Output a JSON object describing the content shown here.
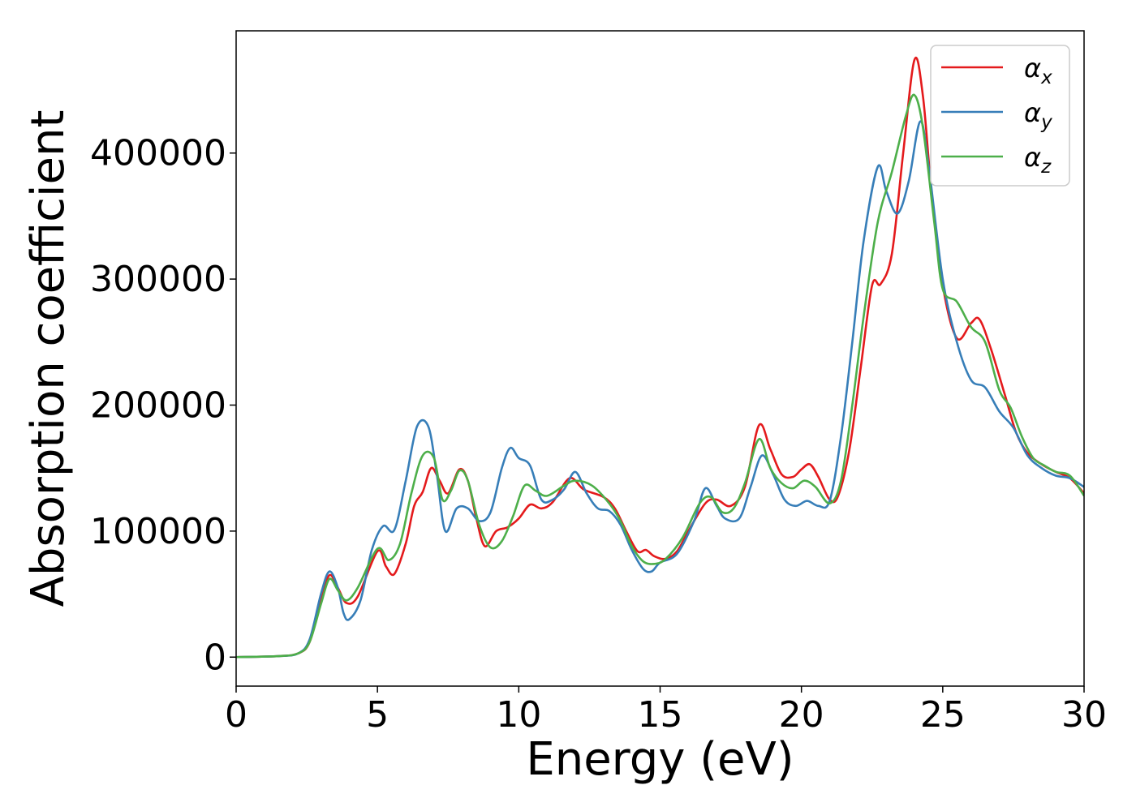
{
  "chart_data": {
    "type": "line",
    "xlabel": "Energy (eV)",
    "ylabel": "Absorption coefficient",
    "xlim": [
      0,
      30
    ],
    "ylim": [
      -23000,
      497000
    ],
    "xticks": [
      0,
      5,
      10,
      15,
      20,
      25,
      30
    ],
    "yticks": [
      0,
      100000,
      200000,
      300000,
      400000
    ],
    "grid": false,
    "legend_position": "top-right",
    "series": [
      {
        "name": "α_x",
        "legend_base": "α",
        "legend_sub": "x",
        "color": "#e41a1c",
        "points": [
          [
            0,
            0
          ],
          [
            1.5,
            800
          ],
          [
            2.2,
            3000
          ],
          [
            2.6,
            12000
          ],
          [
            3.0,
            45000
          ],
          [
            3.3,
            65000
          ],
          [
            3.6,
            55000
          ],
          [
            3.9,
            43000
          ],
          [
            4.3,
            48000
          ],
          [
            5.0,
            84000
          ],
          [
            5.3,
            72000
          ],
          [
            5.6,
            66000
          ],
          [
            6.0,
            90000
          ],
          [
            6.3,
            120000
          ],
          [
            6.6,
            131000
          ],
          [
            6.9,
            150000
          ],
          [
            7.2,
            140000
          ],
          [
            7.5,
            130000
          ],
          [
            7.9,
            149000
          ],
          [
            8.2,
            140000
          ],
          [
            8.5,
            110000
          ],
          [
            8.8,
            88000
          ],
          [
            9.2,
            100000
          ],
          [
            9.6,
            103000
          ],
          [
            10.0,
            110000
          ],
          [
            10.4,
            121000
          ],
          [
            10.8,
            118000
          ],
          [
            11.2,
            123000
          ],
          [
            11.8,
            142000
          ],
          [
            12.3,
            133000
          ],
          [
            13.0,
            127000
          ],
          [
            13.4,
            118000
          ],
          [
            13.8,
            100000
          ],
          [
            14.2,
            84000
          ],
          [
            14.5,
            85000
          ],
          [
            14.8,
            80000
          ],
          [
            15.2,
            78000
          ],
          [
            15.6,
            84000
          ],
          [
            16.0,
            100000
          ],
          [
            16.6,
            122000
          ],
          [
            17.0,
            125000
          ],
          [
            17.5,
            120000
          ],
          [
            18.0,
            135000
          ],
          [
            18.5,
            184000
          ],
          [
            18.9,
            165000
          ],
          [
            19.3,
            145000
          ],
          [
            19.7,
            143000
          ],
          [
            20.0,
            149000
          ],
          [
            20.3,
            153000
          ],
          [
            20.6,
            143000
          ],
          [
            21.0,
            125000
          ],
          [
            21.3,
            128000
          ],
          [
            21.7,
            165000
          ],
          [
            22.1,
            230000
          ],
          [
            22.5,
            295000
          ],
          [
            22.8,
            296000
          ],
          [
            23.2,
            320000
          ],
          [
            23.6,
            400000
          ],
          [
            24.0,
            474000
          ],
          [
            24.3,
            445000
          ],
          [
            24.6,
            370000
          ],
          [
            25.0,
            295000
          ],
          [
            25.5,
            253000
          ],
          [
            26.0,
            265000
          ],
          [
            26.3,
            268000
          ],
          [
            26.7,
            245000
          ],
          [
            27.2,
            208000
          ],
          [
            27.6,
            178000
          ],
          [
            28.0,
            162000
          ],
          [
            28.5,
            153000
          ],
          [
            29.0,
            147000
          ],
          [
            29.5,
            142000
          ],
          [
            30,
            130000
          ]
        ]
      },
      {
        "name": "α_y",
        "legend_base": "α",
        "legend_sub": "y",
        "color": "#377eb8",
        "points": [
          [
            0,
            0
          ],
          [
            1.5,
            800
          ],
          [
            2.2,
            3000
          ],
          [
            2.6,
            14000
          ],
          [
            3.0,
            50000
          ],
          [
            3.3,
            68000
          ],
          [
            3.6,
            55000
          ],
          [
            3.8,
            35000
          ],
          [
            4.0,
            30000
          ],
          [
            4.4,
            45000
          ],
          [
            4.8,
            85000
          ],
          [
            5.2,
            104000
          ],
          [
            5.6,
            101000
          ],
          [
            6.0,
            140000
          ],
          [
            6.4,
            183000
          ],
          [
            6.8,
            183000
          ],
          [
            7.1,
            145000
          ],
          [
            7.4,
            100000
          ],
          [
            7.8,
            118000
          ],
          [
            8.2,
            118000
          ],
          [
            8.6,
            108000
          ],
          [
            9.0,
            115000
          ],
          [
            9.4,
            150000
          ],
          [
            9.7,
            166000
          ],
          [
            10.0,
            158000
          ],
          [
            10.4,
            152000
          ],
          [
            10.8,
            125000
          ],
          [
            11.2,
            125000
          ],
          [
            11.6,
            133000
          ],
          [
            12.0,
            147000
          ],
          [
            12.4,
            130000
          ],
          [
            12.8,
            118000
          ],
          [
            13.2,
            116000
          ],
          [
            13.6,
            105000
          ],
          [
            14.0,
            85000
          ],
          [
            14.4,
            70000
          ],
          [
            14.7,
            68000
          ],
          [
            15.0,
            75000
          ],
          [
            15.6,
            82000
          ],
          [
            16.2,
            108000
          ],
          [
            16.6,
            134000
          ],
          [
            17.0,
            120000
          ],
          [
            17.3,
            110000
          ],
          [
            17.8,
            110000
          ],
          [
            18.2,
            135000
          ],
          [
            18.6,
            160000
          ],
          [
            19.0,
            145000
          ],
          [
            19.4,
            125000
          ],
          [
            19.8,
            120000
          ],
          [
            20.2,
            124000
          ],
          [
            20.6,
            120000
          ],
          [
            21.0,
            124000
          ],
          [
            21.4,
            175000
          ],
          [
            21.8,
            250000
          ],
          [
            22.2,
            330000
          ],
          [
            22.7,
            389000
          ],
          [
            23.0,
            370000
          ],
          [
            23.4,
            352000
          ],
          [
            23.8,
            378000
          ],
          [
            24.2,
            425000
          ],
          [
            24.5,
            390000
          ],
          [
            25.0,
            300000
          ],
          [
            25.5,
            250000
          ],
          [
            26.0,
            220000
          ],
          [
            26.5,
            214000
          ],
          [
            27.0,
            195000
          ],
          [
            27.5,
            182000
          ],
          [
            28.0,
            160000
          ],
          [
            28.5,
            150000
          ],
          [
            29.0,
            144000
          ],
          [
            29.5,
            142000
          ],
          [
            30,
            135000
          ]
        ]
      },
      {
        "name": "α_z",
        "legend_base": "α",
        "legend_sub": "z",
        "color": "#4daf4a",
        "points": [
          [
            0,
            0
          ],
          [
            1.5,
            800
          ],
          [
            2.2,
            3000
          ],
          [
            2.6,
            12000
          ],
          [
            3.0,
            42000
          ],
          [
            3.3,
            62000
          ],
          [
            3.6,
            53000
          ],
          [
            3.9,
            45000
          ],
          [
            4.3,
            55000
          ],
          [
            5.0,
            86000
          ],
          [
            5.4,
            77000
          ],
          [
            5.8,
            90000
          ],
          [
            6.2,
            130000
          ],
          [
            6.6,
            160000
          ],
          [
            7.0,
            158000
          ],
          [
            7.3,
            125000
          ],
          [
            7.6,
            132000
          ],
          [
            7.9,
            148000
          ],
          [
            8.2,
            140000
          ],
          [
            8.6,
            105000
          ],
          [
            9.0,
            87000
          ],
          [
            9.4,
            92000
          ],
          [
            9.8,
            112000
          ],
          [
            10.2,
            136000
          ],
          [
            10.6,
            132000
          ],
          [
            11.0,
            128000
          ],
          [
            11.6,
            136000
          ],
          [
            12.0,
            140000
          ],
          [
            12.6,
            136000
          ],
          [
            13.2,
            122000
          ],
          [
            13.6,
            108000
          ],
          [
            14.0,
            88000
          ],
          [
            14.4,
            76000
          ],
          [
            14.8,
            74000
          ],
          [
            15.2,
            78000
          ],
          [
            15.8,
            95000
          ],
          [
            16.4,
            122000
          ],
          [
            16.8,
            127000
          ],
          [
            17.2,
            115000
          ],
          [
            17.6,
            118000
          ],
          [
            18.0,
            138000
          ],
          [
            18.5,
            173000
          ],
          [
            18.9,
            150000
          ],
          [
            19.3,
            138000
          ],
          [
            19.7,
            134000
          ],
          [
            20.1,
            140000
          ],
          [
            20.5,
            135000
          ],
          [
            21.0,
            122000
          ],
          [
            21.4,
            140000
          ],
          [
            21.8,
            200000
          ],
          [
            22.2,
            270000
          ],
          [
            22.7,
            345000
          ],
          [
            23.2,
            385000
          ],
          [
            23.7,
            430000
          ],
          [
            24.0,
            446000
          ],
          [
            24.3,
            420000
          ],
          [
            24.7,
            345000
          ],
          [
            25.0,
            292000
          ],
          [
            25.5,
            282000
          ],
          [
            26.0,
            262000
          ],
          [
            26.5,
            250000
          ],
          [
            27.0,
            212000
          ],
          [
            27.4,
            198000
          ],
          [
            27.8,
            175000
          ],
          [
            28.2,
            158000
          ],
          [
            28.6,
            152000
          ],
          [
            29.0,
            147000
          ],
          [
            29.5,
            144000
          ],
          [
            30,
            128000
          ]
        ]
      }
    ]
  }
}
